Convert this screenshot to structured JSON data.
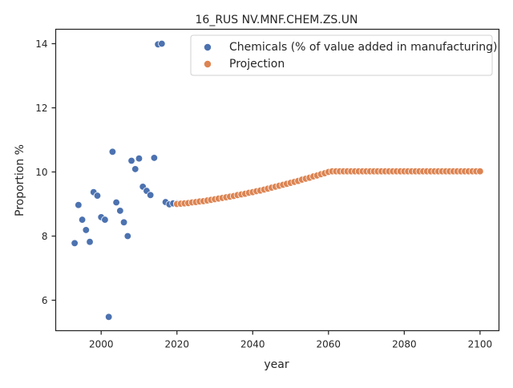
{
  "chart_data": {
    "type": "scatter",
    "title": "16_RUS NV.MNF.CHEM.ZS.UN",
    "xlabel": "year",
    "ylabel": "Proportion %",
    "xlim": [
      1988,
      2105
    ],
    "ylim": [
      5.05,
      14.45
    ],
    "xticks": [
      2000,
      2020,
      2040,
      2060,
      2080,
      2100
    ],
    "yticks": [
      6,
      8,
      10,
      12,
      14
    ],
    "grid": false,
    "legend_position": "top-right",
    "series": [
      {
        "name": "Chemicals (% of value added in manufacturing)",
        "color": "#4c72b0",
        "x": [
          1993,
          1994,
          1995,
          1996,
          1997,
          1998,
          1999,
          2000,
          2001,
          2002,
          2003,
          2004,
          2005,
          2006,
          2007,
          2008,
          2009,
          2010,
          2011,
          2012,
          2013,
          2014,
          2015,
          2016,
          2017,
          2018,
          2019,
          2020
        ],
        "y": [
          7.78,
          8.97,
          8.51,
          8.19,
          7.82,
          9.37,
          9.26,
          8.59,
          8.51,
          5.48,
          10.63,
          9.05,
          8.79,
          8.43,
          8.0,
          10.35,
          10.09,
          10.42,
          9.54,
          9.41,
          9.28,
          10.44,
          13.98,
          14.0,
          9.06,
          8.99,
          9.02,
          9.02
        ]
      },
      {
        "name": "Projection",
        "color": "#dd8452",
        "x": [
          2020,
          2021,
          2022,
          2023,
          2024,
          2025,
          2026,
          2027,
          2028,
          2029,
          2030,
          2031,
          2032,
          2033,
          2034,
          2035,
          2036,
          2037,
          2038,
          2039,
          2040,
          2041,
          2042,
          2043,
          2044,
          2045,
          2046,
          2047,
          2048,
          2049,
          2050,
          2051,
          2052,
          2053,
          2054,
          2055,
          2056,
          2057,
          2058,
          2059,
          2060,
          2061,
          2062,
          2063,
          2064,
          2065,
          2066,
          2067,
          2068,
          2069,
          2070,
          2071,
          2072,
          2073,
          2074,
          2075,
          2076,
          2077,
          2078,
          2079,
          2080,
          2081,
          2082,
          2083,
          2084,
          2085,
          2086,
          2087,
          2088,
          2089,
          2090,
          2091,
          2092,
          2093,
          2094,
          2095,
          2096,
          2097,
          2098,
          2099,
          2100
        ],
        "y": [
          9.0,
          9.01,
          9.02,
          9.03,
          9.05,
          9.06,
          9.08,
          9.09,
          9.11,
          9.13,
          9.15,
          9.17,
          9.19,
          9.21,
          9.23,
          9.25,
          9.28,
          9.3,
          9.32,
          9.35,
          9.37,
          9.4,
          9.42,
          9.45,
          9.48,
          9.51,
          9.54,
          9.57,
          9.6,
          9.63,
          9.66,
          9.69,
          9.72,
          9.76,
          9.79,
          9.82,
          9.86,
          9.89,
          9.93,
          9.96,
          10.0,
          10.02,
          10.02,
          10.02,
          10.02,
          10.02,
          10.02,
          10.02,
          10.02,
          10.02,
          10.02,
          10.02,
          10.02,
          10.02,
          10.02,
          10.02,
          10.02,
          10.02,
          10.02,
          10.02,
          10.02,
          10.02,
          10.02,
          10.02,
          10.02,
          10.02,
          10.02,
          10.02,
          10.02,
          10.02,
          10.02,
          10.02,
          10.02,
          10.02,
          10.02,
          10.02,
          10.02,
          10.02,
          10.02,
          10.02,
          10.02
        ]
      }
    ]
  }
}
